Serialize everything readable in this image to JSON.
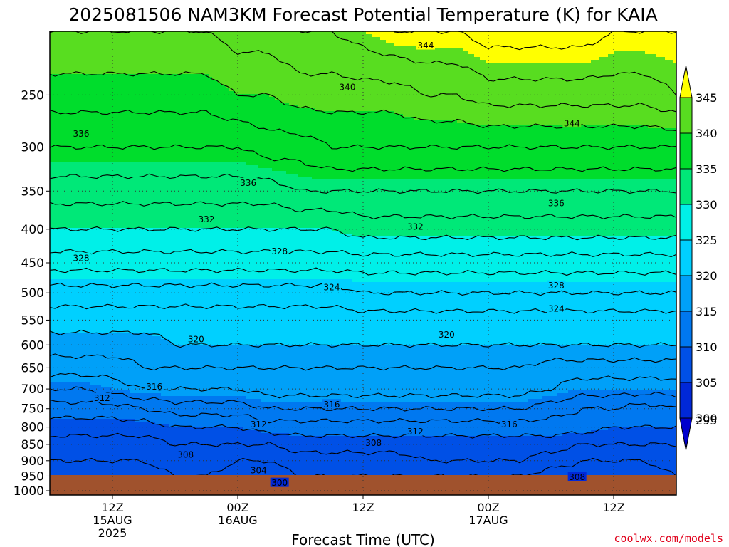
{
  "chart_data": {
    "type": "heatmap",
    "title": "2025081506 NAM3KM Forecast Potential Temperature (K) for KAIA",
    "xlabel": "Forecast Time (UTC)",
    "ylabel": "",
    "credit": "coolwx.com/models",
    "x_unit": "forecast hour from 2025-08-15 06Z",
    "xlim": [
      0,
      60
    ],
    "y_unit": "hPa",
    "ylim": [
      1000,
      200
    ],
    "y_scale": "log",
    "x_ticks": [
      {
        "hour": 6,
        "lines": [
          "12Z",
          "15AUG",
          "2025"
        ]
      },
      {
        "hour": 18,
        "lines": [
          "00Z",
          "16AUG"
        ]
      },
      {
        "hour": 30,
        "lines": [
          "12Z"
        ]
      },
      {
        "hour": 42,
        "lines": [
          "00Z",
          "17AUG"
        ]
      },
      {
        "hour": 54,
        "lines": [
          "12Z"
        ]
      }
    ],
    "y_ticks": [
      250,
      300,
      350,
      400,
      450,
      500,
      550,
      600,
      650,
      700,
      750,
      800,
      850,
      900,
      950,
      1000
    ],
    "gridlines": true,
    "colorbar": {
      "levels": [
        295,
        300,
        305,
        310,
        315,
        320,
        325,
        330,
        335,
        340,
        345
      ],
      "colors": [
        "#0000cc",
        "#0028d8",
        "#0050e6",
        "#0078f0",
        "#00a0f8",
        "#00d0ff",
        "#00f0e8",
        "#00e878",
        "#00dd2c",
        "#58dd20",
        "#ffff00"
      ],
      "extend": "both",
      "placement": "right"
    },
    "ground_color": "#a0522d",
    "field": {
      "hours": [
        0,
        3,
        6,
        9,
        12,
        15,
        18,
        21,
        24,
        27,
        30,
        33,
        36,
        39,
        42,
        45,
        48,
        51,
        54,
        57,
        60
      ],
      "levels": [
        {
          "hPa": 975,
          "theta": [
            302,
            303,
            302,
            303,
            304,
            303,
            302,
            303,
            303,
            302,
            303,
            304,
            304,
            304,
            304,
            305,
            303,
            302,
            301,
            303,
            304
          ]
        },
        {
          "hPa": 950,
          "theta": [
            305,
            305,
            305,
            305,
            306,
            306,
            305,
            305,
            306,
            306,
            306,
            306,
            306,
            306,
            306,
            306,
            305,
            305,
            305,
            305,
            306
          ]
        },
        {
          "hPa": 900,
          "theta": [
            306,
            306,
            306,
            306,
            307,
            307,
            306,
            306,
            307,
            307,
            307,
            307,
            308,
            308,
            308,
            308,
            307,
            306,
            306,
            306,
            307
          ]
        },
        {
          "hPa": 850,
          "theta": [
            307,
            307,
            307,
            307,
            308,
            308,
            308,
            308,
            309,
            309,
            309,
            309,
            309,
            309,
            309,
            309,
            309,
            308,
            308,
            308,
            308
          ]
        },
        {
          "hPa": 800,
          "theta": [
            309,
            309,
            309,
            309,
            310,
            310,
            310,
            311,
            311,
            311,
            311,
            311,
            311,
            311,
            311,
            311,
            311,
            311,
            310,
            310,
            310
          ]
        },
        {
          "hPa": 750,
          "theta": [
            311,
            311,
            311,
            312,
            313,
            313,
            313,
            314,
            314,
            314,
            314,
            314,
            314,
            314,
            314,
            314,
            313,
            312,
            312,
            311,
            312
          ]
        },
        {
          "hPa": 700,
          "theta": [
            314,
            314,
            315,
            316,
            316,
            316,
            316,
            317,
            317,
            317,
            317,
            317,
            317,
            317,
            317,
            317,
            316,
            315,
            315,
            315,
            315
          ]
        },
        {
          "hPa": 650,
          "theta": [
            317,
            317,
            317,
            318,
            318,
            318,
            318,
            318,
            318,
            318,
            318,
            318,
            318,
            318,
            318,
            318,
            317,
            317,
            317,
            317,
            317
          ]
        },
        {
          "hPa": 600,
          "theta": [
            319,
            319,
            319,
            319,
            320,
            320,
            320,
            320,
            320,
            320,
            320,
            320,
            320,
            320,
            320,
            320,
            320,
            320,
            320,
            320,
            320
          ]
        },
        {
          "hPa": 550,
          "theta": [
            321,
            321,
            321,
            321,
            321,
            321,
            321,
            321,
            321,
            321,
            321,
            321,
            321,
            321,
            321,
            321,
            321,
            321,
            321,
            321,
            321
          ]
        },
        {
          "hPa": 500,
          "theta": [
            323,
            323,
            323,
            323,
            323,
            323,
            323,
            323,
            323,
            323,
            324,
            324,
            324,
            324,
            324,
            324,
            324,
            324,
            324,
            324,
            324
          ]
        },
        {
          "hPa": 450,
          "theta": [
            327,
            327,
            327,
            327,
            327,
            327,
            327,
            327,
            327,
            327,
            327,
            327,
            327,
            327,
            327,
            327,
            327,
            327,
            327,
            327,
            327
          ]
        },
        {
          "hPa": 400,
          "theta": [
            330,
            330,
            330,
            330,
            330,
            330,
            330,
            330,
            330,
            330,
            331,
            331,
            331,
            331,
            331,
            331,
            331,
            331,
            331,
            331,
            331
          ]
        },
        {
          "hPa": 350,
          "theta": [
            333,
            333,
            333,
            333,
            333,
            333,
            333,
            333,
            334,
            334,
            334,
            334,
            334,
            334,
            334,
            334,
            334,
            334,
            334,
            334,
            334
          ]
        },
        {
          "hPa": 300,
          "theta": [
            336,
            336,
            336,
            336,
            336,
            336,
            336,
            337,
            337,
            338,
            338,
            338,
            338,
            338,
            338,
            338,
            338,
            338,
            338,
            338,
            338
          ]
        },
        {
          "hPa": 250,
          "theta": [
            339,
            339,
            339,
            339,
            339,
            339,
            340,
            340,
            341,
            341,
            341,
            341,
            342,
            342,
            343,
            343,
            343,
            343,
            343,
            343,
            344
          ]
        },
        {
          "hPa": 200,
          "theta": [
            342,
            342,
            342,
            342,
            342,
            342,
            343,
            343,
            344,
            344,
            345,
            346,
            346,
            346,
            347,
            347,
            347,
            347,
            346,
            346,
            346
          ]
        }
      ]
    },
    "contour_labels": [
      {
        "text": "344",
        "hour": 36,
        "hPa": 210
      },
      {
        "text": "340",
        "hour": 28.5,
        "hPa": 243
      },
      {
        "text": "344",
        "hour": 50,
        "hPa": 276
      },
      {
        "text": "336",
        "hour": 3,
        "hPa": 286
      },
      {
        "text": "336",
        "hour": 19,
        "hPa": 340
      },
      {
        "text": "336",
        "hour": 48.5,
        "hPa": 365
      },
      {
        "text": "332",
        "hour": 15,
        "hPa": 386
      },
      {
        "text": "332",
        "hour": 35,
        "hPa": 396
      },
      {
        "text": "328",
        "hour": 3,
        "hPa": 442
      },
      {
        "text": "328",
        "hour": 22,
        "hPa": 432
      },
      {
        "text": "328",
        "hour": 48.5,
        "hPa": 487
      },
      {
        "text": "324",
        "hour": 27,
        "hPa": 490
      },
      {
        "text": "324",
        "hour": 48.5,
        "hPa": 528
      },
      {
        "text": "320",
        "hour": 14,
        "hPa": 588
      },
      {
        "text": "320",
        "hour": 38,
        "hPa": 578
      },
      {
        "text": "316",
        "hour": 10,
        "hPa": 694
      },
      {
        "text": "316",
        "hour": 27,
        "hPa": 738
      },
      {
        "text": "316",
        "hour": 44,
        "hPa": 792
      },
      {
        "text": "312",
        "hour": 5,
        "hPa": 722
      },
      {
        "text": "312",
        "hour": 20,
        "hPa": 792
      },
      {
        "text": "312",
        "hour": 35,
        "hPa": 812
      },
      {
        "text": "308",
        "hour": 13,
        "hPa": 880
      },
      {
        "text": "308",
        "hour": 31,
        "hPa": 845
      },
      {
        "text": "308",
        "hour": 50.5,
        "hPa": 953
      },
      {
        "text": "304",
        "hour": 20,
        "hPa": 930
      },
      {
        "text": "300",
        "hour": 22,
        "hPa": 972
      }
    ]
  }
}
